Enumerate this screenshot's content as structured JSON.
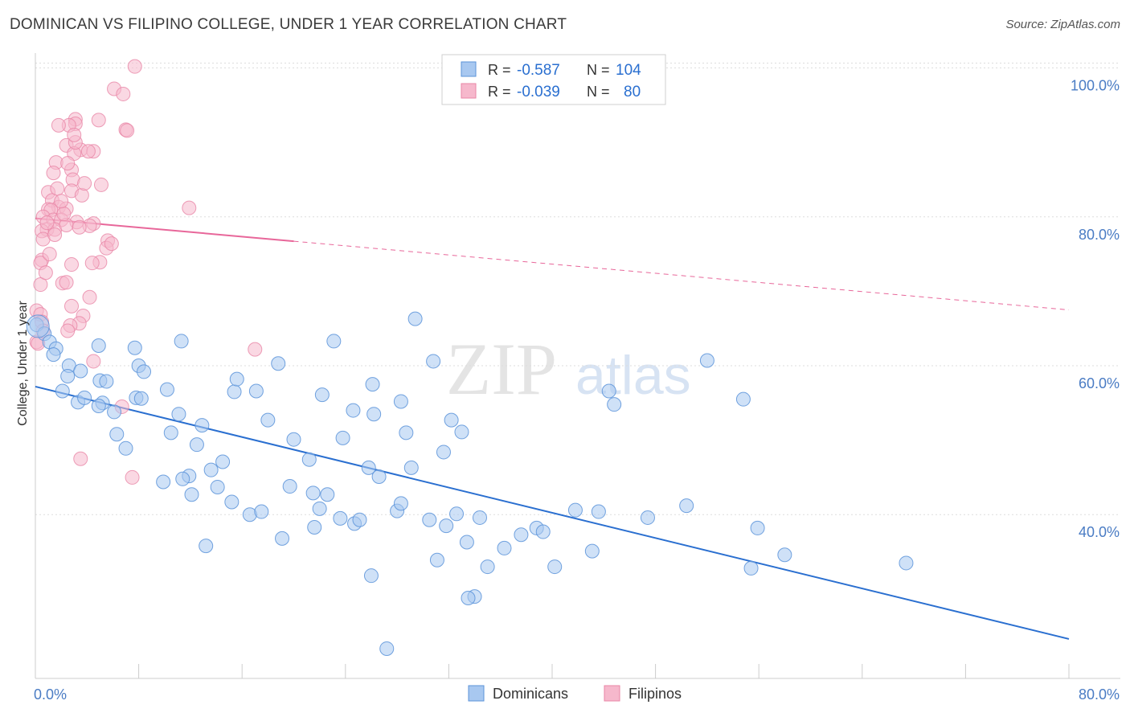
{
  "title": "DOMINICAN VS FILIPINO COLLEGE, UNDER 1 YEAR CORRELATION CHART",
  "source": "Source: ZipAtlas.com",
  "watermark": {
    "left": "ZIP",
    "right": "atlas"
  },
  "colors": {
    "dominicans_fill": "#a8c8f0",
    "dominicans_stroke": "#5b93d9",
    "dominicans_line": "#2a6fd0",
    "filipinos_fill": "#f6b8cc",
    "filipinos_stroke": "#e886a6",
    "filipinos_line": "#e8679a",
    "tick_label": "#4a7cc4",
    "grid": "#dddddd"
  },
  "legend": {
    "rows": [
      {
        "r_label": "R =",
        "r_value": "-0.587",
        "n_label": "N =",
        "n_value": "104"
      },
      {
        "r_label": "R =",
        "r_value": "-0.039",
        "n_label": "N =",
        "n_value": "80"
      }
    ]
  },
  "chart_data": {
    "type": "scatter",
    "title": "DOMINICAN VS FILIPINO COLLEGE, UNDER 1 YEAR CORRELATION CHART",
    "xlabel": "",
    "ylabel": "College, Under 1 year",
    "xlim": [
      0,
      80
    ],
    "ylim": [
      18,
      102
    ],
    "x_tick_labels": [
      "0.0%",
      "80.0%"
    ],
    "y_ticks": [
      40,
      60,
      80,
      100
    ],
    "y_tick_labels": [
      "40.0%",
      "60.0%",
      "80.0%",
      "100.0%"
    ],
    "grid": true,
    "legend_position": "top-center",
    "bottom_legend": [
      "Dominicans",
      "Filipinos"
    ],
    "series": [
      {
        "name": "Dominicans",
        "r": -0.587,
        "n": 104,
        "trend": {
          "x": [
            0,
            80
          ],
          "y": [
            57.2,
            23.3
          ],
          "solid_to": 80
        },
        "points": [
          [
            0.1,
            65.5
          ],
          [
            0.7,
            64.3
          ],
          [
            1.1,
            63.2
          ],
          [
            1.6,
            62.3
          ],
          [
            1.4,
            61.5
          ],
          [
            2.6,
            60.0
          ],
          [
            3.5,
            59.3
          ],
          [
            2.5,
            58.6
          ],
          [
            2.1,
            56.6
          ],
          [
            3.3,
            55.1
          ],
          [
            3.8,
            55.7
          ],
          [
            4.9,
            62.7
          ],
          [
            5.0,
            58.0
          ],
          [
            5.5,
            57.9
          ],
          [
            7.7,
            62.4
          ],
          [
            8.0,
            60.0
          ],
          [
            8.4,
            59.2
          ],
          [
            7.8,
            55.7
          ],
          [
            8.2,
            55.6
          ],
          [
            10.2,
            56.8
          ],
          [
            11.3,
            63.3
          ],
          [
            5.2,
            55.0
          ],
          [
            4.9,
            54.6
          ],
          [
            6.1,
            53.8
          ],
          [
            11.1,
            53.5
          ],
          [
            12.9,
            52.0
          ],
          [
            10.5,
            51.0
          ],
          [
            6.3,
            50.8
          ],
          [
            7.0,
            48.9
          ],
          [
            12.5,
            49.4
          ],
          [
            13.6,
            46.0
          ],
          [
            11.9,
            45.2
          ],
          [
            9.9,
            44.4
          ],
          [
            11.4,
            44.8
          ],
          [
            12.1,
            42.7
          ],
          [
            14.5,
            47.1
          ],
          [
            15.4,
            56.5
          ],
          [
            15.6,
            58.2
          ],
          [
            17.1,
            56.6
          ],
          [
            18.0,
            52.7
          ],
          [
            18.8,
            60.3
          ],
          [
            19.7,
            43.8
          ],
          [
            20.0,
            50.1
          ],
          [
            21.2,
            47.4
          ],
          [
            22.2,
            56.1
          ],
          [
            23.1,
            63.3
          ],
          [
            24.6,
            54.0
          ],
          [
            23.8,
            50.3
          ],
          [
            26.1,
            57.5
          ],
          [
            26.2,
            53.5
          ],
          [
            28.3,
            55.2
          ],
          [
            28.7,
            51.0
          ],
          [
            26.6,
            45.1
          ],
          [
            25.8,
            46.3
          ],
          [
            14.1,
            43.7
          ],
          [
            15.2,
            41.7
          ],
          [
            16.6,
            40.0
          ],
          [
            17.5,
            40.4
          ],
          [
            19.1,
            36.8
          ],
          [
            22.6,
            42.7
          ],
          [
            21.5,
            42.9
          ],
          [
            22.0,
            40.8
          ],
          [
            24.7,
            38.8
          ],
          [
            25.1,
            39.3
          ],
          [
            23.6,
            39.5
          ],
          [
            29.4,
            66.3
          ],
          [
            30.8,
            60.6
          ],
          [
            32.2,
            52.7
          ],
          [
            33.0,
            51.1
          ],
          [
            31.6,
            48.4
          ],
          [
            28.0,
            40.5
          ],
          [
            28.3,
            41.5
          ],
          [
            29.1,
            46.3
          ],
          [
            30.5,
            39.3
          ],
          [
            31.1,
            33.9
          ],
          [
            34.4,
            39.6
          ],
          [
            32.6,
            40.1
          ],
          [
            33.4,
            36.3
          ],
          [
            34.0,
            29.0
          ],
          [
            33.5,
            28.8
          ],
          [
            35.0,
            33.0
          ],
          [
            37.6,
            37.3
          ],
          [
            38.8,
            38.2
          ],
          [
            39.3,
            37.7
          ],
          [
            40.2,
            33.0
          ],
          [
            41.8,
            40.6
          ],
          [
            43.6,
            40.4
          ],
          [
            43.1,
            35.1
          ],
          [
            44.4,
            56.6
          ],
          [
            44.8,
            54.8
          ],
          [
            47.4,
            39.6
          ],
          [
            50.4,
            41.2
          ],
          [
            52.0,
            60.7
          ],
          [
            54.8,
            55.5
          ],
          [
            55.9,
            38.2
          ],
          [
            55.4,
            32.8
          ],
          [
            58.0,
            34.6
          ],
          [
            67.4,
            33.5
          ],
          [
            27.2,
            22.0
          ],
          [
            13.2,
            35.8
          ],
          [
            21.6,
            38.3
          ],
          [
            26.0,
            31.8
          ],
          [
            31.8,
            38.5
          ],
          [
            36.3,
            35.5
          ]
        ]
      },
      {
        "name": "Filipinos",
        "r": -0.039,
        "n": 80,
        "trend": {
          "x": [
            0,
            80
          ],
          "y": [
            79.8,
            67.5
          ],
          "solid_to": 20
        },
        "points": [
          [
            7.7,
            100.2
          ],
          [
            6.1,
            97.2
          ],
          [
            6.8,
            96.5
          ],
          [
            4.9,
            93.0
          ],
          [
            3.1,
            93.1
          ],
          [
            3.1,
            92.5
          ],
          [
            2.6,
            92.3
          ],
          [
            1.8,
            92.3
          ],
          [
            7.0,
            91.7
          ],
          [
            7.1,
            91.6
          ],
          [
            2.4,
            89.6
          ],
          [
            3.5,
            89.0
          ],
          [
            4.5,
            88.8
          ],
          [
            3.0,
            88.5
          ],
          [
            1.6,
            87.3
          ],
          [
            2.8,
            86.3
          ],
          [
            1.4,
            85.9
          ],
          [
            2.9,
            85.0
          ],
          [
            5.1,
            84.3
          ],
          [
            2.8,
            83.5
          ],
          [
            3.6,
            82.9
          ],
          [
            1.0,
            83.3
          ],
          [
            1.3,
            82.2
          ],
          [
            1.8,
            81.3
          ],
          [
            2.4,
            81.1
          ],
          [
            1.0,
            81.0
          ],
          [
            1.2,
            80.9
          ],
          [
            0.6,
            80.0
          ],
          [
            1.4,
            79.6
          ],
          [
            2.0,
            79.6
          ],
          [
            3.2,
            79.3
          ],
          [
            4.5,
            79.1
          ],
          [
            0.9,
            78.3
          ],
          [
            1.5,
            78.3
          ],
          [
            0.5,
            78.1
          ],
          [
            0.6,
            77.0
          ],
          [
            2.4,
            78.9
          ],
          [
            4.2,
            78.8
          ],
          [
            3.4,
            78.6
          ],
          [
            11.9,
            81.2
          ],
          [
            5.6,
            76.8
          ],
          [
            5.5,
            75.8
          ],
          [
            0.5,
            74.2
          ],
          [
            0.4,
            73.8
          ],
          [
            2.8,
            73.6
          ],
          [
            5.0,
            73.9
          ],
          [
            4.4,
            73.8
          ],
          [
            2.1,
            71.1
          ],
          [
            2.4,
            71.2
          ],
          [
            0.4,
            70.9
          ],
          [
            4.2,
            69.2
          ],
          [
            2.8,
            68.0
          ],
          [
            0.1,
            67.4
          ],
          [
            0.4,
            66.9
          ],
          [
            3.7,
            66.7
          ],
          [
            0.5,
            65.9
          ],
          [
            3.4,
            65.7
          ],
          [
            2.7,
            65.4
          ],
          [
            0.6,
            64.7
          ],
          [
            2.5,
            64.7
          ],
          [
            0.1,
            63.2
          ],
          [
            0.2,
            63.0
          ],
          [
            17.0,
            62.2
          ],
          [
            4.5,
            60.6
          ],
          [
            6.7,
            54.5
          ],
          [
            3.5,
            47.5
          ],
          [
            7.5,
            45.0
          ],
          [
            0.9,
            79.2
          ],
          [
            1.7,
            83.8
          ],
          [
            2.2,
            80.4
          ],
          [
            3.8,
            84.5
          ],
          [
            5.9,
            76.4
          ],
          [
            1.1,
            75.0
          ],
          [
            3.1,
            90.0
          ],
          [
            4.1,
            88.8
          ],
          [
            2.5,
            87.2
          ],
          [
            1.5,
            77.6
          ],
          [
            0.8,
            72.5
          ],
          [
            2.0,
            82.1
          ],
          [
            3.0,
            91.0
          ]
        ]
      }
    ]
  }
}
